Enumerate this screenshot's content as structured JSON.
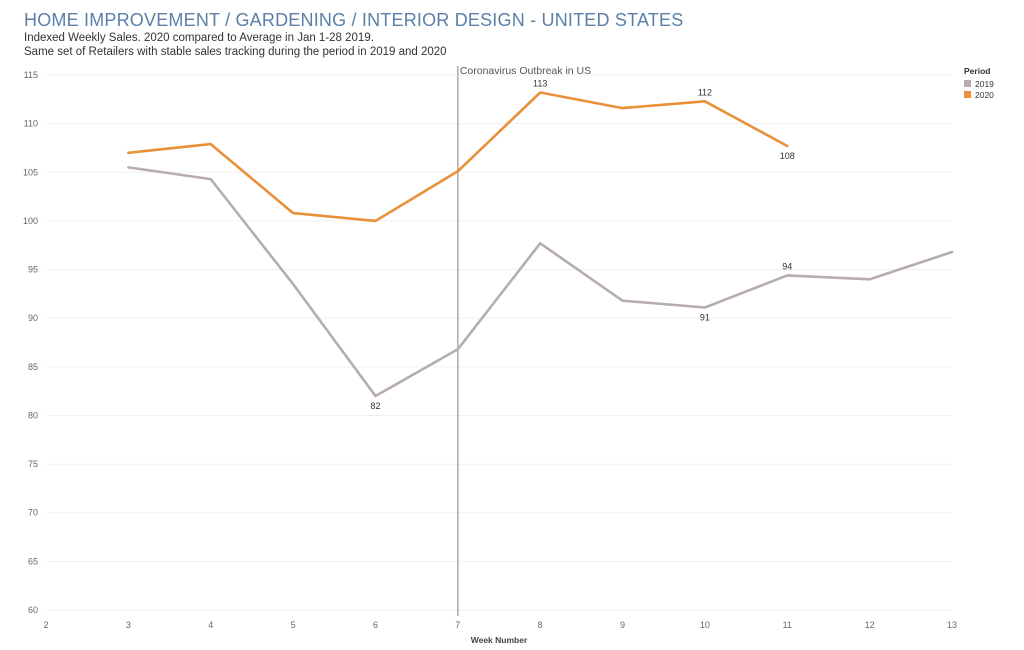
{
  "header": {
    "title": "HOME IMPROVEMENT / GARDENING / INTERIOR DESIGN - UNITED STATES",
    "subtitle_1": "Indexed Weekly Sales. 2020 compared to Average in Jan 1-28 2019.",
    "subtitle_2": "Same set of Retailers with stable sales tracking during the period in 2019 and 2020"
  },
  "legend": {
    "title": "Period",
    "items": [
      {
        "label": "2019",
        "color": "#b7aeab"
      },
      {
        "label": "2020",
        "color": "#e8903a"
      }
    ]
  },
  "chart_data": {
    "type": "line",
    "title": "HOME IMPROVEMENT / GARDENING / INTERIOR DESIGN - UNITED STATES",
    "xlabel": "Week Number",
    "ylabel": "",
    "xlim": [
      2,
      13
    ],
    "ylim": [
      60,
      115
    ],
    "x_ticks": [
      2,
      3,
      4,
      5,
      6,
      7,
      8,
      9,
      10,
      11,
      12,
      13
    ],
    "y_ticks": [
      60,
      65,
      70,
      75,
      80,
      85,
      90,
      95,
      100,
      105,
      110,
      115
    ],
    "grid": "horizontal",
    "legend_position": "top-right",
    "series": [
      {
        "name": "2019",
        "color": "#b7aeab",
        "x": [
          3,
          4,
          5,
          6,
          7,
          8,
          9,
          10,
          11,
          12,
          13
        ],
        "values": [
          105.5,
          104.3,
          93.5,
          82.0,
          86.8,
          97.7,
          91.8,
          91.1,
          94.4,
          94.0,
          96.8
        ]
      },
      {
        "name": "2020",
        "color": "#e8903a",
        "x": [
          3,
          4,
          5,
          6,
          7,
          8,
          9,
          10,
          11
        ],
        "values": [
          107.0,
          107.9,
          100.8,
          100.0,
          105.1,
          113.2,
          111.6,
          112.3,
          107.7
        ]
      }
    ],
    "data_labels": [
      {
        "series": "2019",
        "x": 6,
        "text": "82",
        "position": "below"
      },
      {
        "series": "2019",
        "x": 10,
        "text": "91",
        "position": "below"
      },
      {
        "series": "2019",
        "x": 11,
        "text": "94",
        "position": "above"
      },
      {
        "series": "2020",
        "x": 8,
        "text": "113",
        "position": "above"
      },
      {
        "series": "2020",
        "x": 10,
        "text": "112",
        "position": "above"
      },
      {
        "series": "2020",
        "x": 11,
        "text": "108",
        "position": "below"
      }
    ],
    "annotations": [
      {
        "type": "vertical-line",
        "x": 7,
        "text": "Coronavirus Outbreak in US",
        "color": "#aaaaaa"
      }
    ]
  }
}
